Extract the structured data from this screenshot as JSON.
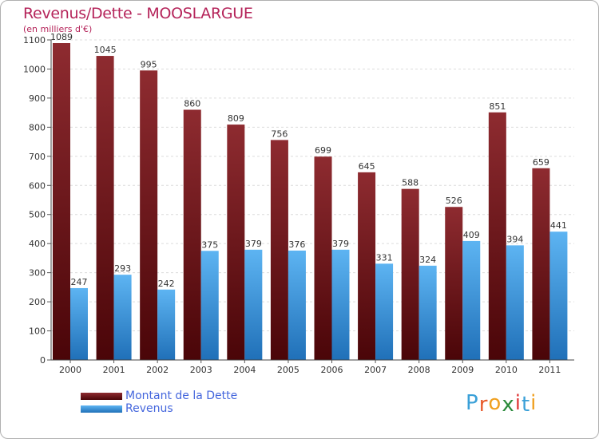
{
  "header": {
    "title": "Revenus/Dette - MOOSLARGUE",
    "subtitle": "(en milliers d'€)"
  },
  "chart_data": {
    "type": "bar",
    "title": "Revenus/Dette - MOOSLARGUE",
    "ylabel": "(en milliers d'€)",
    "xlabel": "",
    "categories": [
      "2000",
      "2001",
      "2002",
      "2003",
      "2004",
      "2005",
      "2006",
      "2007",
      "2008",
      "2009",
      "2010",
      "2011"
    ],
    "series": [
      {
        "name": "Montant de la Dette",
        "values": [
          1089,
          1045,
          995,
          860,
          809,
          756,
          699,
          645,
          588,
          526,
          851,
          659
        ],
        "color": "#7a1a1e"
      },
      {
        "name": "Revenus",
        "values": [
          247,
          293,
          242,
          375,
          379,
          376,
          379,
          331,
          324,
          409,
          394,
          441
        ],
        "color": "#3d9be0"
      }
    ],
    "ylim": [
      0,
      1100
    ],
    "yticks": [
      0,
      100,
      200,
      300,
      400,
      500,
      600,
      700,
      800,
      900,
      1000,
      1100
    ],
    "grid": true,
    "legend_position": "bottom-left"
  },
  "legend": {
    "items": [
      {
        "label": "Montant de la Dette",
        "color": "#7a1a1e"
      },
      {
        "label": "Revenus",
        "color": "#3d9be0"
      }
    ]
  },
  "logo": {
    "letters": [
      "P",
      "r",
      "o",
      "x",
      "i",
      "t",
      "i"
    ],
    "colors": [
      "#3aa0d8",
      "#e85a2a",
      "#f0a020",
      "#2a8a3a",
      "#e03a3a",
      "#3aa0d8",
      "#f0a020"
    ]
  }
}
